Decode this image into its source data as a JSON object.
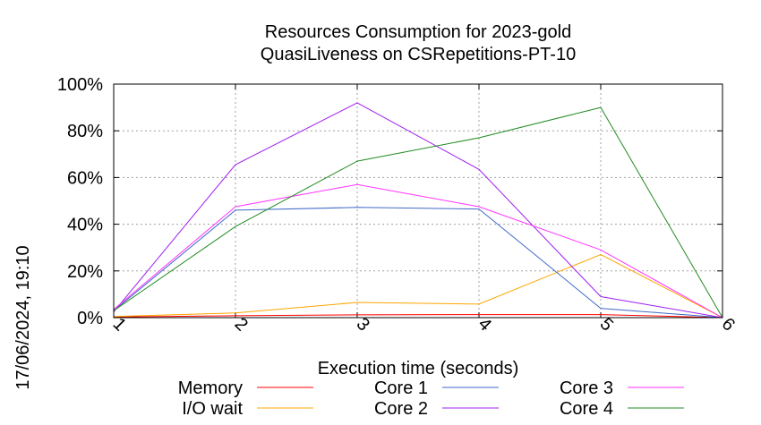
{
  "chart_data": {
    "type": "line",
    "title_lines": [
      "Resources Consumption for 2023-gold",
      "QuasiLiveness on CSRepetitions-PT-10"
    ],
    "xlabel": "Execution time (seconds)",
    "ylabel": "",
    "side_label": "17/06/2024, 19:10",
    "x": [
      1,
      2,
      3,
      4,
      5,
      6
    ],
    "xlim": [
      1,
      6
    ],
    "ylim": [
      0,
      100
    ],
    "x_ticks": [
      "1",
      "2",
      "3",
      "4",
      "5",
      "6"
    ],
    "y_ticks": [
      "0%",
      "20%",
      "40%",
      "60%",
      "80%",
      "100%"
    ],
    "grid": true,
    "legend_position": "bottom",
    "series": [
      {
        "name": "Memory",
        "color": "#ff0000",
        "values": [
          0.3,
          0.8,
          1.2,
          1.3,
          1.3,
          0
        ]
      },
      {
        "name": "I/O wait",
        "color": "#ffa500",
        "values": [
          0.5,
          2.0,
          6.5,
          5.8,
          27.0,
          0
        ]
      },
      {
        "name": "Core 1",
        "color": "#4169c8",
        "values": [
          3.0,
          46.0,
          47.2,
          46.5,
          4.0,
          0
        ]
      },
      {
        "name": "Core 2",
        "color": "#a020f0",
        "values": [
          2.5,
          65.5,
          92.0,
          63.5,
          9.0,
          0
        ]
      },
      {
        "name": "Core 3",
        "color": "#ff33ff",
        "values": [
          3.5,
          47.5,
          57.0,
          47.5,
          29.0,
          0
        ]
      },
      {
        "name": "Core 4",
        "color": "#228b22",
        "values": [
          3.0,
          39.0,
          67.0,
          77.0,
          90.0,
          0
        ]
      }
    ]
  }
}
